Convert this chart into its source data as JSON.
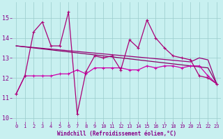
{
  "x": [
    0,
    1,
    2,
    3,
    4,
    5,
    6,
    7,
    8,
    9,
    10,
    11,
    12,
    13,
    14,
    15,
    16,
    17,
    18,
    19,
    20,
    21,
    22,
    23
  ],
  "line_volatile": [
    11.2,
    12.1,
    14.3,
    14.8,
    13.6,
    13.6,
    15.3,
    10.2,
    12.3,
    13.1,
    13.0,
    13.1,
    12.4,
    13.9,
    13.5,
    14.9,
    14.0,
    13.5,
    13.1,
    13.0,
    12.9,
    12.1,
    12.0,
    11.7
  ],
  "line_bottom": [
    11.2,
    12.1,
    12.1,
    12.1,
    12.1,
    12.2,
    12.2,
    12.4,
    12.2,
    12.5,
    12.5,
    12.5,
    12.5,
    12.4,
    12.4,
    12.6,
    12.5,
    12.6,
    12.6,
    12.5,
    12.6,
    12.6,
    12.1,
    11.7
  ],
  "line_trend1": [
    13.6,
    13.55,
    13.5,
    13.45,
    13.4,
    13.35,
    13.3,
    13.25,
    13.2,
    13.15,
    13.1,
    13.05,
    13.0,
    12.95,
    12.9,
    12.85,
    12.8,
    12.75,
    12.7,
    12.65,
    12.6,
    12.55,
    12.5,
    11.7
  ],
  "line_trend2": [
    13.6,
    13.56,
    13.52,
    13.48,
    13.44,
    13.4,
    13.36,
    13.32,
    13.28,
    13.24,
    13.2,
    13.16,
    13.12,
    13.08,
    13.04,
    13.0,
    12.96,
    12.92,
    12.88,
    12.84,
    12.8,
    13.0,
    12.9,
    11.7
  ],
  "color_volatile": "#aa0077",
  "color_bottom": "#cc00aa",
  "color_trend1": "#880066",
  "color_trend2": "#990077",
  "bg_color": "#c8f0f0",
  "grid_color": "#99cccc",
  "tick_color": "#880088",
  "xlabel": "Windchill (Refroidissement éolien,°C)",
  "ylim": [
    9.8,
    15.8
  ],
  "xlim": [
    -0.5,
    23.5
  ],
  "yticks": [
    10,
    11,
    12,
    13,
    14,
    15
  ],
  "xticks": [
    0,
    1,
    2,
    3,
    4,
    5,
    6,
    7,
    8,
    9,
    10,
    11,
    12,
    13,
    14,
    15,
    16,
    17,
    18,
    19,
    20,
    21,
    22,
    23
  ]
}
